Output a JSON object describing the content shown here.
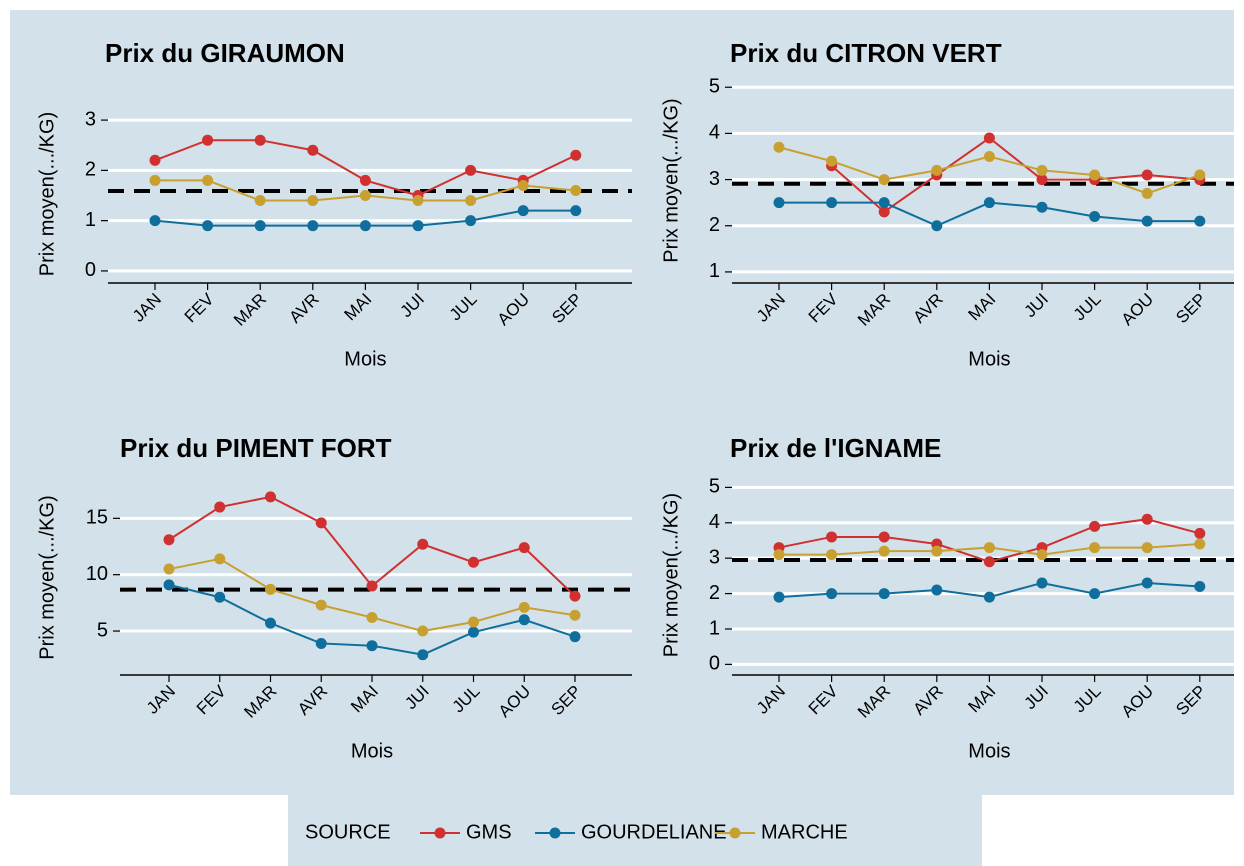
{
  "chart_data": [
    {
      "type": "line",
      "title": "Prix du GIRAUMON",
      "xlabel": "Mois",
      "ylabel": "Prix moyen(.../KG)",
      "categories": [
        "JAN",
        "FEV",
        "MAR",
        "AVR",
        "MAI",
        "JUI",
        "JUL",
        "AOU",
        "SEP"
      ],
      "series": [
        {
          "name": "GMS",
          "color": "#d03030",
          "values": [
            2.2,
            2.6,
            2.6,
            2.4,
            1.8,
            1.5,
            2.0,
            1.8,
            2.3
          ]
        },
        {
          "name": "GOURDELIANE",
          "color": "#0f6e9c",
          "values": [
            1.0,
            0.9,
            0.9,
            0.9,
            0.9,
            0.9,
            1.0,
            1.2,
            1.2
          ]
        },
        {
          "name": "MARCHE",
          "color": "#c8a032",
          "values": [
            1.8,
            1.8,
            1.4,
            1.4,
            1.5,
            1.4,
            1.4,
            1.7,
            1.6
          ]
        }
      ],
      "ylim": [
        -0.24,
        3.3
      ],
      "yticks": [
        0,
        1,
        2,
        3
      ],
      "grid": true,
      "reference_line": 1.59
    },
    {
      "type": "line",
      "title": "Prix du CITRON VERT",
      "xlabel": "Mois",
      "ylabel": "Prix moyen(.../KG)",
      "categories": [
        "JAN",
        "FEV",
        "MAR",
        "AVR",
        "MAI",
        "JUI",
        "JUL",
        "AOU",
        "SEP"
      ],
      "series": [
        {
          "name": "GMS",
          "color": "#d03030",
          "values": [
            null,
            3.3,
            2.3,
            3.1,
            3.9,
            3.0,
            3.0,
            3.1,
            3.0
          ]
        },
        {
          "name": "GOURDELIANE",
          "color": "#0f6e9c",
          "values": [
            2.5,
            2.5,
            2.5,
            2.0,
            2.5,
            2.4,
            2.2,
            2.1,
            2.1
          ]
        },
        {
          "name": "MARCHE",
          "color": "#c8a032",
          "values": [
            3.7,
            3.4,
            3.0,
            3.2,
            3.5,
            3.2,
            3.1,
            2.7,
            3.1
          ]
        }
      ],
      "ylim": [
        0.76,
        5.2
      ],
      "yticks": [
        1,
        2,
        3,
        4,
        5
      ],
      "grid": true,
      "reference_line": 2.91
    },
    {
      "type": "line",
      "title": "Prix du PIMENT FORT",
      "xlabel": "Mois",
      "ylabel": "Prix moyen(.../KG)",
      "categories": [
        "JAN",
        "FEV",
        "MAR",
        "AVR",
        "MAI",
        "JUI",
        "JUL",
        "AOU",
        "SEP"
      ],
      "series": [
        {
          "name": "GMS",
          "color": "#d03030",
          "values": [
            13.1,
            16.0,
            16.9,
            14.6,
            9.0,
            12.7,
            11.1,
            12.4,
            8.1
          ]
        },
        {
          "name": "GOURDELIANE",
          "color": "#0f6e9c",
          "values": [
            9.1,
            8.0,
            5.7,
            3.9,
            3.7,
            2.9,
            4.9,
            6.0,
            4.5
          ]
        },
        {
          "name": "MARCHE",
          "color": "#c8a032",
          "values": [
            10.5,
            11.4,
            8.7,
            7.3,
            6.2,
            5.0,
            5.8,
            7.1,
            6.4
          ]
        }
      ],
      "ylim": [
        1.1,
        18.4
      ],
      "yticks": [
        5,
        10,
        15
      ],
      "grid": true,
      "reference_line": 8.67
    },
    {
      "type": "line",
      "title": "Prix de l'IGNAME",
      "xlabel": "Mois",
      "ylabel": "Prix moyen(.../KG)",
      "categories": [
        "JAN",
        "FEV",
        "MAR",
        "AVR",
        "MAI",
        "JUI",
        "JUL",
        "AOU",
        "SEP"
      ],
      "series": [
        {
          "name": "GMS",
          "color": "#d03030",
          "values": [
            3.3,
            3.6,
            3.6,
            3.4,
            2.9,
            3.3,
            3.9,
            4.1,
            3.7
          ]
        },
        {
          "name": "GOURDELIANE",
          "color": "#0f6e9c",
          "values": [
            1.9,
            2.0,
            2.0,
            2.1,
            1.9,
            2.3,
            2.0,
            2.3,
            2.2
          ]
        },
        {
          "name": "MARCHE",
          "color": "#c8a032",
          "values": [
            3.1,
            3.1,
            3.2,
            3.2,
            3.3,
            3.1,
            3.3,
            3.3,
            3.4
          ]
        }
      ],
      "ylim": [
        -0.3,
        5.35
      ],
      "yticks": [
        0,
        1,
        2,
        3,
        4,
        5
      ],
      "grid": true,
      "reference_line": 2.95
    }
  ],
  "legend": {
    "title": "SOURCE"
  }
}
